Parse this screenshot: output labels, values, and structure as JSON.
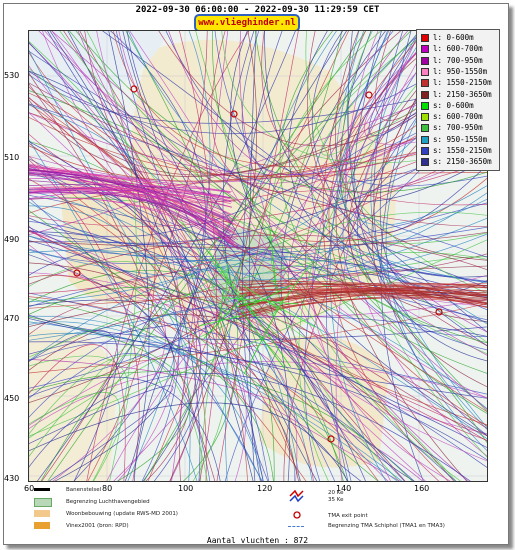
{
  "header": {
    "title": "2022-09-30 06:00:00 - 2022-09-30 11:29:59 CET",
    "site": "www.vlieghinder.nl"
  },
  "axes": {
    "y_ticks": [
      "530",
      "510",
      "490",
      "470",
      "450",
      "430"
    ],
    "x_ticks": [
      "60",
      "80",
      "100",
      "120",
      "140",
      "160"
    ]
  },
  "legend": {
    "items": [
      {
        "label": "l: 0-600m",
        "color": "#e00000"
      },
      {
        "label": "l: 600-700m",
        "color": "#c000c0"
      },
      {
        "label": "l: 700-950m",
        "color": "#a000a0"
      },
      {
        "label": "l: 950-1550m",
        "color": "#ff80c0"
      },
      {
        "label": "l: 1550-2150m",
        "color": "#c03030"
      },
      {
        "label": "l: 2150-3650m",
        "color": "#802020"
      },
      {
        "label": "s: 0-600m",
        "color": "#00e000"
      },
      {
        "label": "s: 600-700m",
        "color": "#a0e000"
      },
      {
        "label": "s: 700-950m",
        "color": "#40c040"
      },
      {
        "label": "s: 950-1550m",
        "color": "#20a0c0"
      },
      {
        "label": "s: 1550-2150m",
        "color": "#3040c0"
      },
      {
        "label": "s: 2150-3650m",
        "color": "#303090"
      }
    ]
  },
  "map_legend": {
    "runways": "Banenstelsel",
    "airport_boundary": "Begrenzing Luchthavengebied",
    "housing": "Woonbebouwing (update RWS-MD 2001)",
    "vinex": "Vinex2001 (bron: RPD)",
    "kv20": "20 Ke",
    "kv35": "35 Ke",
    "tma_exit": "TMA exit point",
    "tma_boundary": "Begrenzing TMA Schiphol  (TMA1 en TMA3)"
  },
  "footer": {
    "count": "Aantal vluchten : 872"
  }
}
